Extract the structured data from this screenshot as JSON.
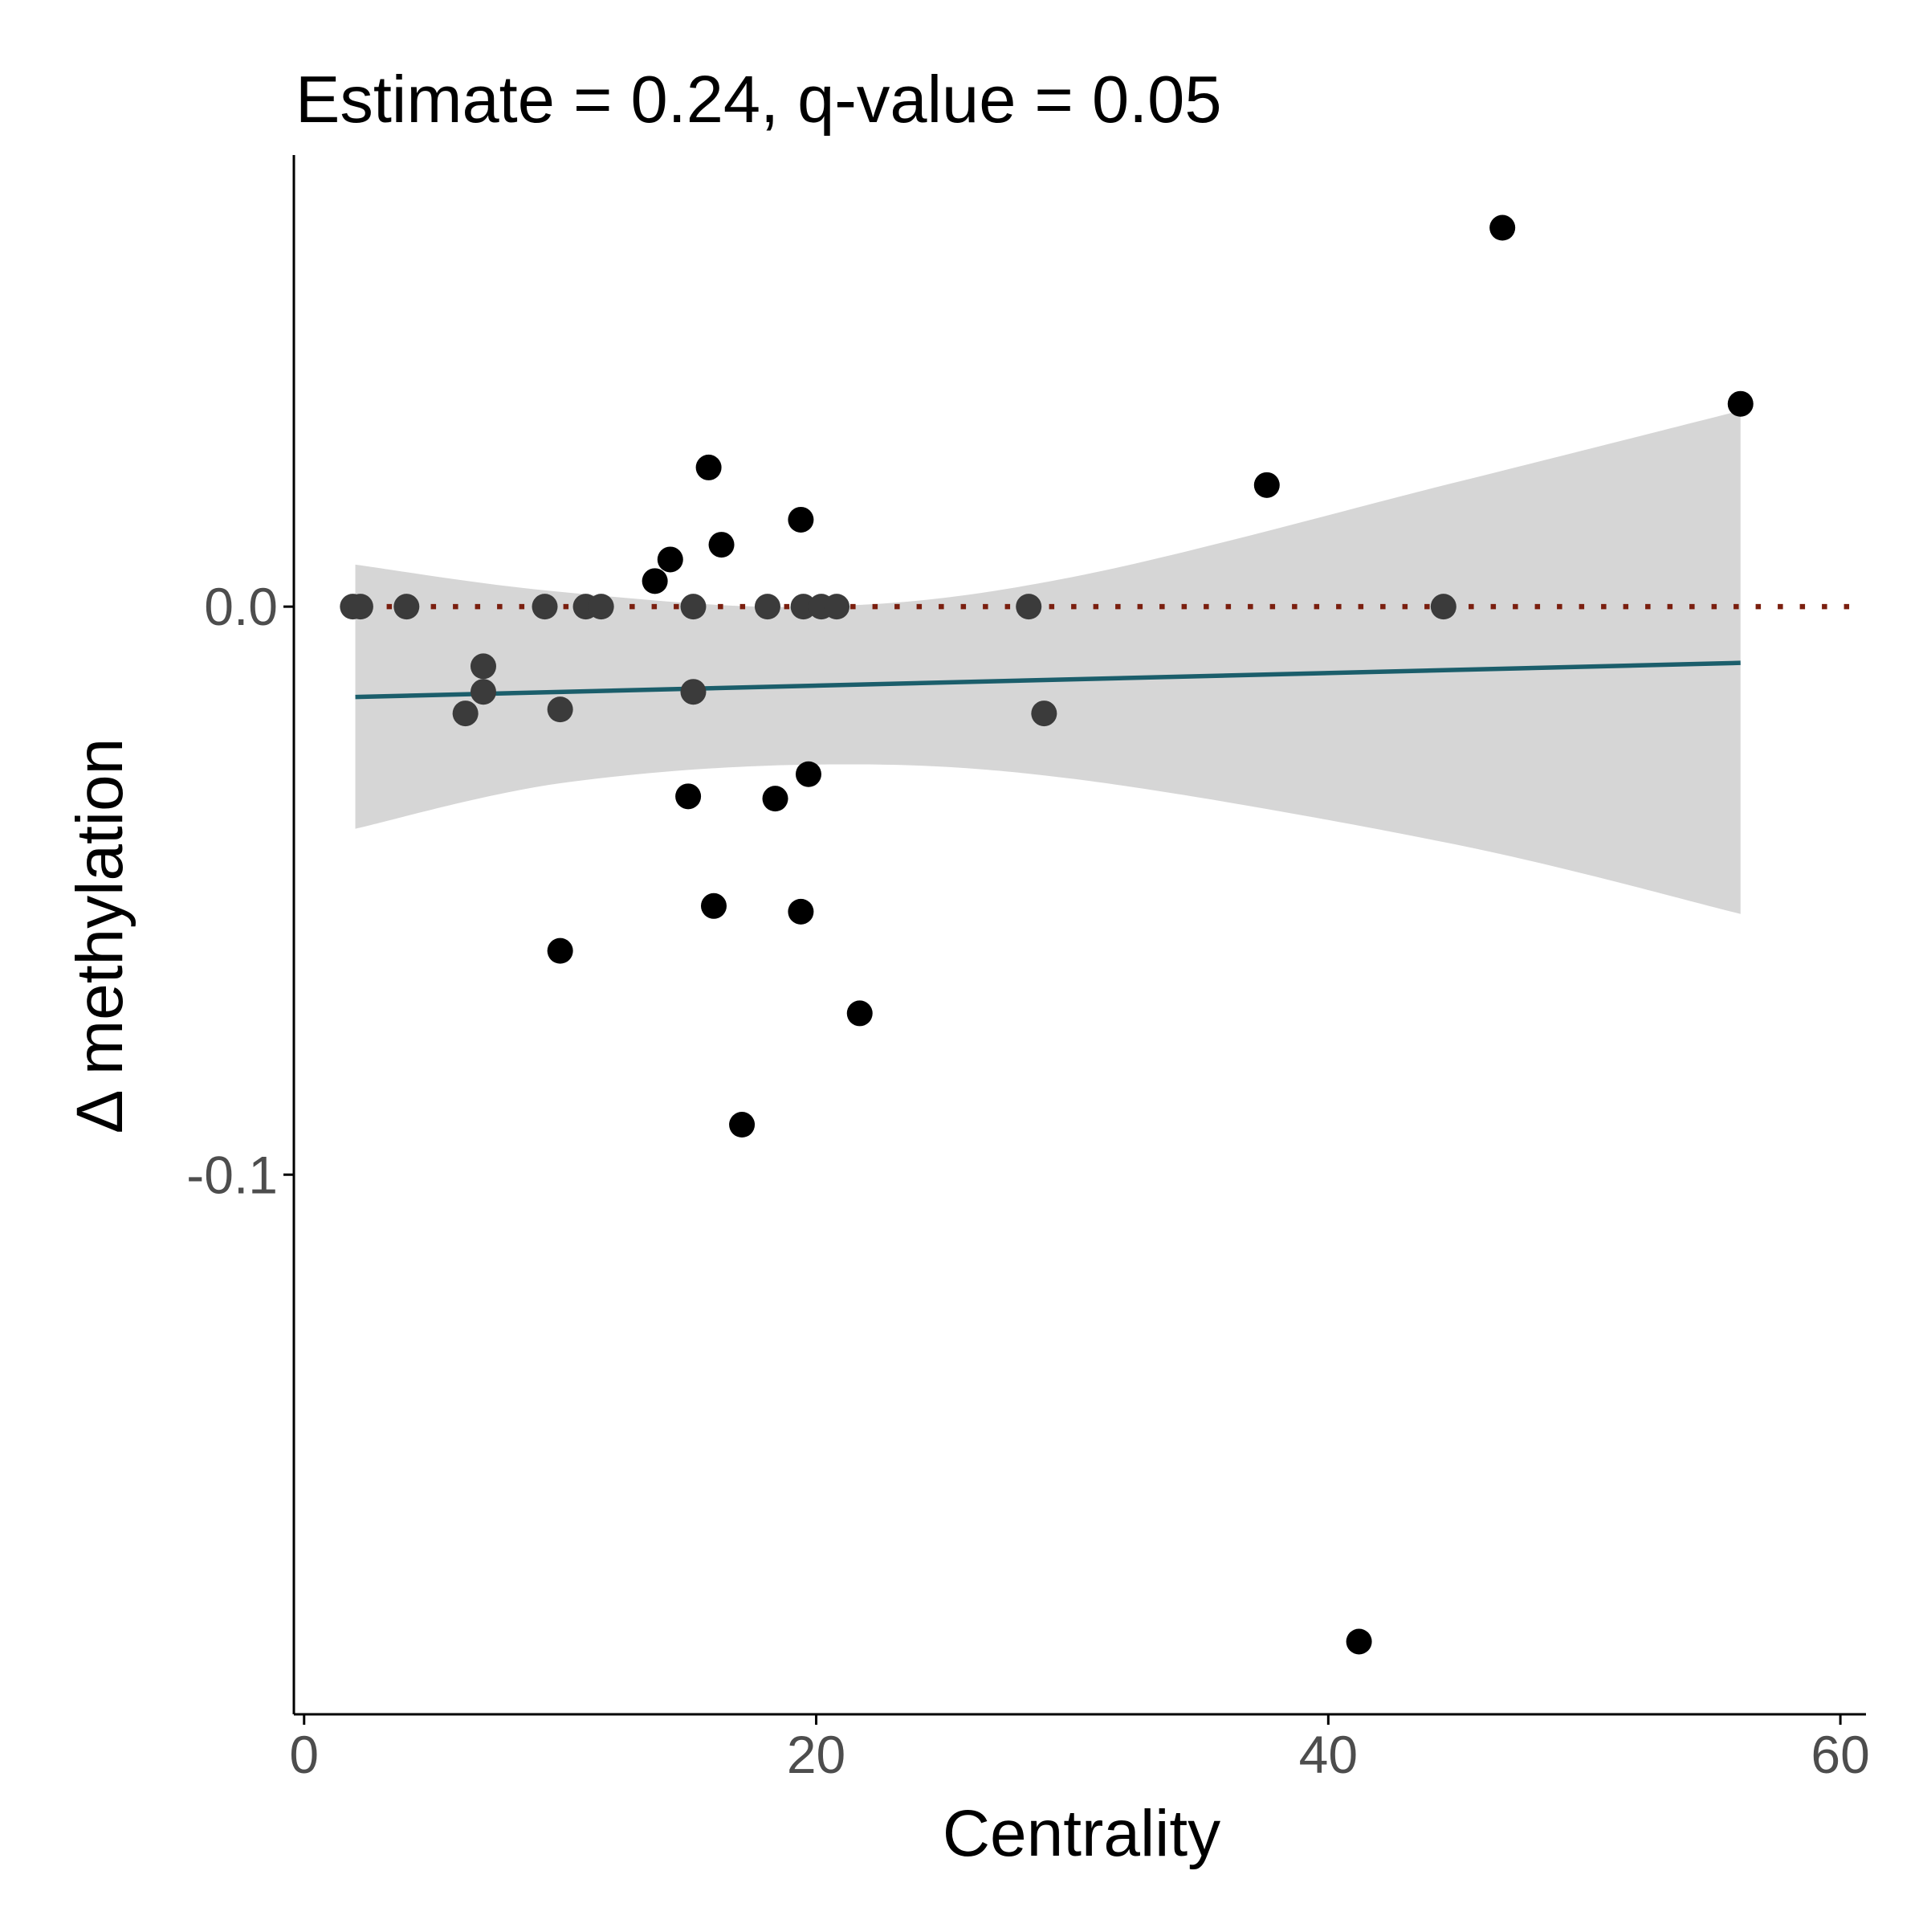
{
  "chart_data": {
    "type": "scatter",
    "title": "Estimate = 0.24, q-value = 0.05",
    "xlabel": "Centrality",
    "ylabel": "Δ methylation",
    "xlim": [
      -0.4,
      61
    ],
    "ylim": [
      -0.195,
      0.0795
    ],
    "x_ticks": [
      {
        "value": 0,
        "label": "0"
      },
      {
        "value": 20,
        "label": "20"
      },
      {
        "value": 40,
        "label": "40"
      },
      {
        "value": 60,
        "label": "60"
      }
    ],
    "y_ticks": [
      {
        "value": 0,
        "label": "0.0"
      },
      {
        "value": -0.1,
        "label": "-0.1"
      }
    ],
    "grid": false,
    "legend": "none",
    "reference_line": {
      "y": 0,
      "style": "dotted",
      "color": "#7b1f0f"
    },
    "fit": {
      "type": "linear",
      "color": "#1b5e6b",
      "line": [
        [
          2.0,
          -0.0159
        ],
        [
          56.1,
          -0.0099
        ]
      ],
      "band_color": "#d6d6d6",
      "ci_upper": [
        [
          2.0,
          0.0074
        ],
        [
          10,
          0.0026
        ],
        [
          20,
          0.0
        ],
        [
          30,
          0.0052
        ],
        [
          45,
          0.0219
        ],
        [
          56.1,
          0.0345
        ]
      ],
      "ci_lower": [
        [
          2.0,
          -0.0391
        ],
        [
          10,
          -0.0311
        ],
        [
          20,
          -0.0278
        ],
        [
          30,
          -0.0303
        ],
        [
          45,
          -0.0419
        ],
        [
          56.1,
          -0.0541
        ]
      ]
    },
    "points": [
      {
        "x": 1.9,
        "y": 0.0,
        "tone": "dark"
      },
      {
        "x": 2.2,
        "y": 0.0,
        "tone": "dark"
      },
      {
        "x": 4.0,
        "y": 0.0,
        "tone": "dark"
      },
      {
        "x": 9.4,
        "y": 0.0,
        "tone": "dark"
      },
      {
        "x": 11.0,
        "y": 0.0,
        "tone": "dark"
      },
      {
        "x": 11.6,
        "y": 0.0,
        "tone": "dark"
      },
      {
        "x": 15.2,
        "y": 0.0,
        "tone": "dark"
      },
      {
        "x": 18.1,
        "y": 0.0,
        "tone": "dark"
      },
      {
        "x": 19.5,
        "y": 0.0,
        "tone": "dark"
      },
      {
        "x": 20.2,
        "y": 0.0,
        "tone": "dark"
      },
      {
        "x": 20.8,
        "y": 0.0,
        "tone": "dark"
      },
      {
        "x": 28.3,
        "y": 0.0,
        "tone": "dark"
      },
      {
        "x": 44.5,
        "y": 0.0,
        "tone": "dark"
      },
      {
        "x": 7.0,
        "y": -0.0105,
        "tone": "dark"
      },
      {
        "x": 7.0,
        "y": -0.015,
        "tone": "dark"
      },
      {
        "x": 6.3,
        "y": -0.0188,
        "tone": "dark"
      },
      {
        "x": 10.0,
        "y": -0.0181,
        "tone": "dark"
      },
      {
        "x": 15.2,
        "y": -0.015,
        "tone": "dark"
      },
      {
        "x": 28.9,
        "y": -0.0188,
        "tone": "dark"
      },
      {
        "x": 13.7,
        "y": 0.0045,
        "tone": "black"
      },
      {
        "x": 14.3,
        "y": 0.0083,
        "tone": "black"
      },
      {
        "x": 16.3,
        "y": 0.0109,
        "tone": "black"
      },
      {
        "x": 15.8,
        "y": 0.0245,
        "tone": "black"
      },
      {
        "x": 19.4,
        "y": 0.0153,
        "tone": "black"
      },
      {
        "x": 37.6,
        "y": 0.0214,
        "tone": "black"
      },
      {
        "x": 46.8,
        "y": 0.0667,
        "tone": "black"
      },
      {
        "x": 56.1,
        "y": 0.0357,
        "tone": "black"
      },
      {
        "x": 15.0,
        "y": -0.0334,
        "tone": "black"
      },
      {
        "x": 18.4,
        "y": -0.0338,
        "tone": "black"
      },
      {
        "x": 19.7,
        "y": -0.0295,
        "tone": "black"
      },
      {
        "x": 16.0,
        "y": -0.0527,
        "tone": "black"
      },
      {
        "x": 19.4,
        "y": -0.0537,
        "tone": "black"
      },
      {
        "x": 10.0,
        "y": -0.0606,
        "tone": "black"
      },
      {
        "x": 21.7,
        "y": -0.0716,
        "tone": "black"
      },
      {
        "x": 17.1,
        "y": -0.0912,
        "tone": "black"
      },
      {
        "x": 41.2,
        "y": -0.1822,
        "tone": "black"
      }
    ],
    "colors": {
      "point_black": "#000000",
      "point_dark": "#3b3b3b",
      "axis": "#000000",
      "tick_text": "#4d4d4d"
    }
  }
}
